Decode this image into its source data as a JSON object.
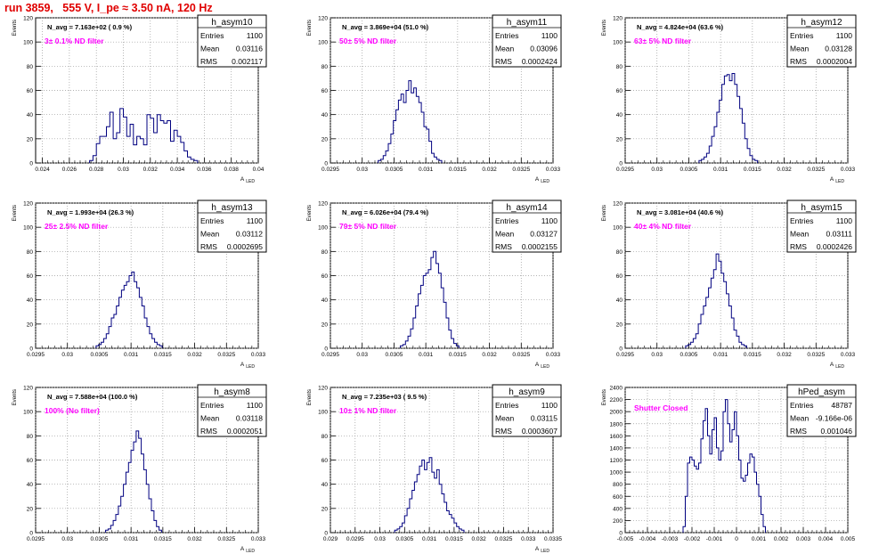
{
  "page_title": "run 3859,   555 V, I_pe ≈ 3.50 nA, 120 Hz",
  "chart_data": [
    {
      "type": "histogram",
      "name": "h_asym10",
      "navg": "N_avg = 7.163e+02 ( 0.9 %)",
      "filter": "3± 0.1% ND filter",
      "stats": {
        "Entries": "1100",
        "Mean": "0.03116",
        "RMS": "0.002117"
      },
      "ylabel": "Events",
      "xlabel": "A_LED",
      "xlim": [
        0.0235,
        0.04
      ],
      "ylim": [
        0,
        120
      ],
      "xticks": [
        0.024,
        0.026,
        0.028,
        0.03,
        0.032,
        0.034,
        0.036,
        0.038,
        0.04
      ],
      "xtick_labels": [
        "0.024",
        "0.026",
        "0.028",
        "0.03",
        "0.032",
        "0.034",
        "0.036",
        "0.038",
        "0.04"
      ],
      "yticks": [
        0,
        20,
        40,
        60,
        80,
        100,
        120
      ],
      "bin_start": 0.0275,
      "bin_width": 0.00025,
      "counts": [
        2,
        6,
        16,
        22,
        22,
        30,
        42,
        20,
        25,
        45,
        38,
        22,
        32,
        15,
        22,
        20,
        15,
        40,
        37,
        25,
        40,
        35,
        33,
        35,
        18,
        27,
        22,
        17,
        10,
        5,
        3,
        2
      ]
    },
    {
      "type": "histogram",
      "name": "h_asym11",
      "navg": "N_avg = 3.869e+04 (51.0 %)",
      "filter": "50± 5% ND filter",
      "stats": {
        "Entries": "1100",
        "Mean": "0.03096",
        "RMS": "0.0002424"
      },
      "ylabel": "Events",
      "xlabel": "A_LED",
      "xlim": [
        0.0295,
        0.033
      ],
      "ylim": [
        0,
        120
      ],
      "xticks": [
        0.0295,
        0.03,
        0.0305,
        0.031,
        0.0315,
        0.032,
        0.0325,
        0.033
      ],
      "xtick_labels": [
        "0.0295",
        "0.03",
        "0.0305",
        "0.031",
        "0.0315",
        "0.032",
        "0.0325",
        "0.033"
      ],
      "yticks": [
        0,
        20,
        40,
        60,
        80,
        100,
        120
      ],
      "bin_start": 0.03025,
      "bin_width": 4e-05,
      "counts": [
        2,
        3,
        6,
        10,
        16,
        24,
        35,
        44,
        52,
        57,
        50,
        60,
        68,
        58,
        62,
        55,
        50,
        42,
        30,
        28,
        18,
        8,
        5,
        3,
        2
      ]
    },
    {
      "type": "histogram",
      "name": "h_asym12",
      "navg": "N_avg = 4.824e+04 (63.6 %)",
      "filter": "63± 5% ND filter",
      "stats": {
        "Entries": "1100",
        "Mean": "0.03128",
        "RMS": "0.0002004"
      },
      "ylabel": "Events",
      "xlabel": "A_LED",
      "xlim": [
        0.0295,
        0.033
      ],
      "ylim": [
        0,
        120
      ],
      "xticks": [
        0.0295,
        0.03,
        0.0305,
        0.031,
        0.0315,
        0.032,
        0.0325,
        0.033
      ],
      "xtick_labels": [
        "0.0295",
        "0.03",
        "0.0305",
        "0.031",
        "0.0315",
        "0.032",
        "0.0325",
        "0.033"
      ],
      "yticks": [
        0,
        20,
        40,
        60,
        80,
        100,
        120
      ],
      "bin_start": 0.03066,
      "bin_width": 4e-05,
      "counts": [
        2,
        3,
        5,
        8,
        14,
        22,
        30,
        42,
        52,
        65,
        72,
        73,
        68,
        74,
        65,
        55,
        45,
        33,
        20,
        12,
        6,
        3,
        2
      ]
    },
    {
      "type": "histogram",
      "name": "h_asym13",
      "navg": "N_avg = 1.993e+04 (26.3 %)",
      "filter": "25± 2.5% ND filter",
      "stats": {
        "Entries": "1100",
        "Mean": "0.03112",
        "RMS": "0.0002695"
      },
      "ylabel": "Events",
      "xlabel": "A_LED",
      "xlim": [
        0.0295,
        0.033
      ],
      "ylim": [
        0,
        120
      ],
      "xticks": [
        0.0295,
        0.03,
        0.0305,
        0.031,
        0.0315,
        0.032,
        0.0325,
        0.033
      ],
      "xtick_labels": [
        "0.0295",
        "0.03",
        "0.0305",
        "0.031",
        "0.0315",
        "0.032",
        "0.0325",
        "0.033"
      ],
      "yticks": [
        0,
        20,
        40,
        60,
        80,
        100,
        120
      ],
      "bin_start": 0.03045,
      "bin_width": 4e-05,
      "counts": [
        2,
        3,
        5,
        8,
        12,
        18,
        25,
        28,
        35,
        42,
        48,
        52,
        55,
        60,
        63,
        55,
        50,
        42,
        35,
        25,
        18,
        12,
        8,
        5,
        3,
        2
      ]
    },
    {
      "type": "histogram",
      "name": "h_asym14",
      "navg": "N_avg = 6.026e+04 (79.4 %)",
      "filter": "79± 5% ND filter",
      "stats": {
        "Entries": "1100",
        "Mean": "0.03127",
        "RMS": "0.0002155"
      },
      "ylabel": "Events",
      "xlabel": "A_LED",
      "xlim": [
        0.0295,
        0.033
      ],
      "ylim": [
        0,
        120
      ],
      "xticks": [
        0.0295,
        0.03,
        0.0305,
        0.031,
        0.0315,
        0.032,
        0.0325,
        0.033
      ],
      "xtick_labels": [
        "0.0295",
        "0.03",
        "0.0305",
        "0.031",
        "0.0315",
        "0.032",
        "0.0325",
        "0.033"
      ],
      "yticks": [
        0,
        20,
        40,
        60,
        80,
        100,
        120
      ],
      "bin_start": 0.0306,
      "bin_width": 4e-05,
      "counts": [
        2,
        3,
        6,
        10,
        16,
        25,
        35,
        45,
        52,
        60,
        62,
        65,
        75,
        80,
        70,
        62,
        50,
        38,
        25,
        15,
        8,
        4,
        2
      ]
    },
    {
      "type": "histogram",
      "name": "h_asym15",
      "navg": "N_avg = 3.081e+04 (40.6 %)",
      "filter": "40± 4% ND filter",
      "stats": {
        "Entries": "1100",
        "Mean": "0.03111",
        "RMS": "0.0002426"
      },
      "ylabel": "Events",
      "xlabel": "A_LED",
      "xlim": [
        0.0295,
        0.033
      ],
      "ylim": [
        0,
        120
      ],
      "xticks": [
        0.0295,
        0.03,
        0.0305,
        0.031,
        0.0315,
        0.032,
        0.0325,
        0.033
      ],
      "xtick_labels": [
        "0.0295",
        "0.03",
        "0.0305",
        "0.031",
        "0.0315",
        "0.032",
        "0.0325",
        "0.033"
      ],
      "yticks": [
        0,
        20,
        40,
        60,
        80,
        100,
        120
      ],
      "bin_start": 0.03045,
      "bin_width": 4e-05,
      "counts": [
        2,
        3,
        5,
        8,
        12,
        20,
        28,
        35,
        42,
        50,
        58,
        65,
        78,
        72,
        62,
        55,
        45,
        35,
        25,
        15,
        10,
        5,
        3,
        2
      ]
    },
    {
      "type": "histogram",
      "name": "h_asym8",
      "navg": "N_avg = 7.588e+04 (100.0 %)",
      "filter": "100% (No filter)",
      "stats": {
        "Entries": "1100",
        "Mean": "0.03118",
        "RMS": "0.0002051"
      },
      "ylabel": "Events",
      "xlabel": "A_LED",
      "xlim": [
        0.0295,
        0.033
      ],
      "ylim": [
        0,
        120
      ],
      "xticks": [
        0.0295,
        0.03,
        0.0305,
        0.031,
        0.0315,
        0.032,
        0.0325,
        0.033
      ],
      "xtick_labels": [
        "0.0295",
        "0.03",
        "0.0305",
        "0.031",
        "0.0315",
        "0.032",
        "0.0325",
        "0.033"
      ],
      "yticks": [
        0,
        20,
        40,
        60,
        80,
        100,
        120
      ],
      "bin_start": 0.0306,
      "bin_width": 4e-05,
      "counts": [
        2,
        3,
        6,
        10,
        15,
        22,
        30,
        40,
        50,
        58,
        68,
        75,
        84,
        78,
        65,
        52,
        40,
        28,
        18,
        10,
        5,
        2
      ]
    },
    {
      "type": "histogram",
      "name": "h_asym9",
      "navg": "N_avg = 7.235e+03 ( 9.5 %)",
      "filter": "10± 1% ND filter",
      "stats": {
        "Entries": "1100",
        "Mean": "0.03115",
        "RMS": "0.0003607"
      },
      "ylabel": "Events",
      "xlabel": "A_LED",
      "xlim": [
        0.029,
        0.0335
      ],
      "ylim": [
        0,
        120
      ],
      "xticks": [
        0.029,
        0.0295,
        0.03,
        0.0305,
        0.031,
        0.0315,
        0.032,
        0.0325,
        0.033,
        0.0335
      ],
      "xtick_labels": [
        "0.029",
        "0.0295",
        "0.03",
        "0.0305",
        "0.031",
        "0.0315",
        "0.032",
        "0.0325",
        "0.033",
        "0.0335"
      ],
      "yticks": [
        0,
        20,
        40,
        60,
        80,
        100,
        120
      ],
      "bin_start": 0.0303,
      "bin_width": 5e-05,
      "counts": [
        2,
        3,
        5,
        8,
        14,
        20,
        28,
        35,
        42,
        48,
        55,
        60,
        52,
        58,
        62,
        50,
        45,
        52,
        40,
        32,
        25,
        18,
        15,
        12,
        8,
        5,
        3,
        2
      ]
    },
    {
      "type": "histogram",
      "name": "hPed_asym",
      "navg": "",
      "filter": "Shutter Closed",
      "stats": {
        "Entries": "48787",
        "Mean": "-9.166e-06",
        "RMS": "0.001046"
      },
      "ylabel": "Events",
      "xlabel": "",
      "xlim": [
        -0.005,
        0.005
      ],
      "ylim": [
        0,
        2400
      ],
      "xticks": [
        -0.005,
        -0.004,
        -0.003,
        -0.002,
        -0.001,
        0,
        0.001,
        0.002,
        0.003,
        0.004,
        0.005
      ],
      "xtick_labels": [
        "-0.005",
        "-0.004",
        "-0.003",
        "-0.002",
        "-0.001",
        "0",
        "0.001",
        "0.002",
        "0.003",
        "0.004",
        "0.005"
      ],
      "yticks": [
        0,
        200,
        400,
        600,
        800,
        1000,
        1200,
        1400,
        1600,
        1800,
        2000,
        2200,
        2400
      ],
      "bin_start": -0.0024,
      "bin_width": 0.0001,
      "counts": [
        100,
        600,
        1150,
        1250,
        1200,
        1100,
        1050,
        1150,
        1550,
        1850,
        2050,
        1600,
        1300,
        1700,
        1900,
        1400,
        1200,
        1350,
        2000,
        2200,
        1800,
        1500,
        1700,
        2000,
        1600,
        1200,
        900,
        850,
        950,
        1150,
        1300,
        1250,
        1000,
        800,
        600,
        300,
        100
      ]
    }
  ]
}
